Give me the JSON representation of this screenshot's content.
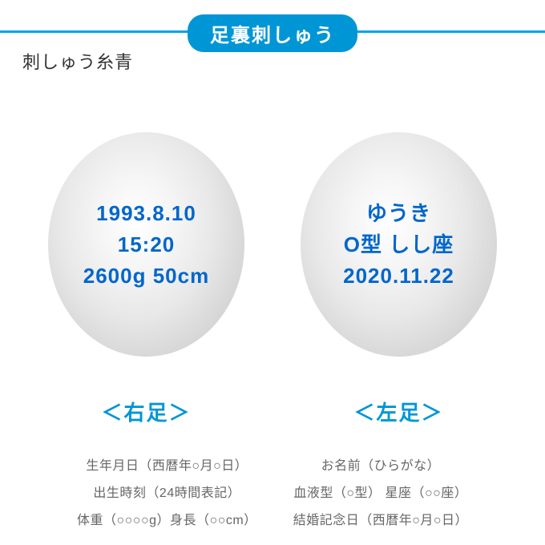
{
  "header": {
    "title": "足裏刺しゅう",
    "subtitle": "刺しゅう糸青",
    "badge_bg_color": "#0096d6",
    "line_color": "#00a5e3"
  },
  "feet": {
    "right": {
      "label": "＜右足＞",
      "line1": "1993.8.10",
      "line2": "15:20",
      "line3": "2600g 50cm",
      "text_color": "#0066cc",
      "label_color": "#0096d6"
    },
    "left": {
      "label": "＜左足＞",
      "line1": "ゆうき",
      "line2": "O型 しし座",
      "line3": "2020.11.22",
      "text_color": "#0066cc",
      "label_color": "#0096d6"
    }
  },
  "descriptions": {
    "right": {
      "line1": "生年月日（西暦年○月○日）",
      "line2": "出生時刻（24時間表記）",
      "line3": "体重（○○○○g）身長（○○cm）"
    },
    "left": {
      "line1": "お名前（ひらがな）",
      "line2": "血液型（○型） 星座（○○座）",
      "line3": "結婚記念日（西暦年○月○日）"
    },
    "text_color": "#666666"
  }
}
